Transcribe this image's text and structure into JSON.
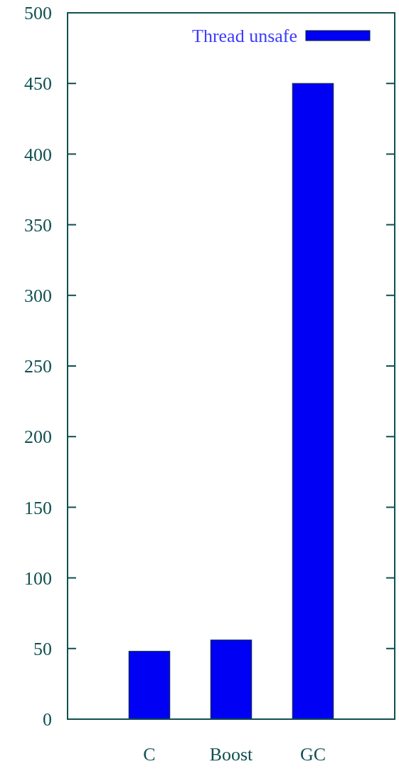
{
  "chart_data": {
    "type": "bar",
    "categories": [
      "C",
      "Boost",
      "GC"
    ],
    "series": [
      {
        "name": "Thread unsafe",
        "color": "#0000f5",
        "values": [
          48,
          56,
          450
        ]
      }
    ],
    "ylim": [
      0,
      500
    ],
    "yticks": [
      0,
      50,
      100,
      150,
      200,
      250,
      300,
      350,
      400,
      450,
      500
    ],
    "grid": false,
    "legend": "top right"
  }
}
